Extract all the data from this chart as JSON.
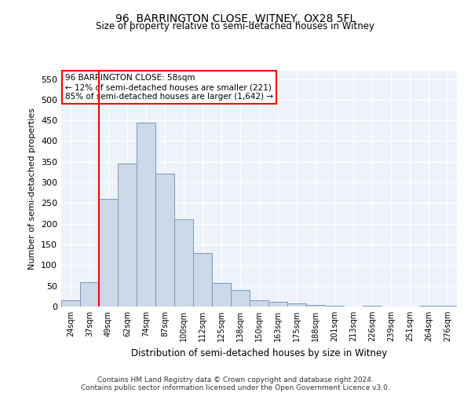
{
  "title1": "96, BARRINGTON CLOSE, WITNEY, OX28 5FL",
  "title2": "Size of property relative to semi-detached houses in Witney",
  "xlabel": "Distribution of semi-detached houses by size in Witney",
  "ylabel": "Number of semi-detached properties",
  "categories": [
    "24sqm",
    "37sqm",
    "49sqm",
    "62sqm",
    "74sqm",
    "87sqm",
    "100sqm",
    "112sqm",
    "125sqm",
    "138sqm",
    "150sqm",
    "163sqm",
    "175sqm",
    "188sqm",
    "201sqm",
    "213sqm",
    "226sqm",
    "239sqm",
    "251sqm",
    "264sqm",
    "276sqm"
  ],
  "values": [
    15,
    58,
    260,
    345,
    445,
    322,
    210,
    130,
    57,
    40,
    15,
    11,
    7,
    4,
    2,
    0,
    2,
    0,
    0,
    2,
    2
  ],
  "bar_color": "#ccd9e8",
  "bar_edge_color": "#7799bb",
  "vline_color": "red",
  "annotation_box_text": "96 BARRINGTON CLOSE: 58sqm\n← 12% of semi-detached houses are smaller (221)\n85% of semi-detached houses are larger (1,642) →",
  "ylim": [
    0,
    570
  ],
  "yticks": [
    0,
    50,
    100,
    150,
    200,
    250,
    300,
    350,
    400,
    450,
    500,
    550
  ],
  "footnote1": "Contains HM Land Registry data © Crown copyright and database right 2024.",
  "footnote2": "Contains public sector information licensed under the Open Government Licence v3.0.",
  "bg_color": "#ffffff",
  "plot_bg_color": "#eef2fa"
}
